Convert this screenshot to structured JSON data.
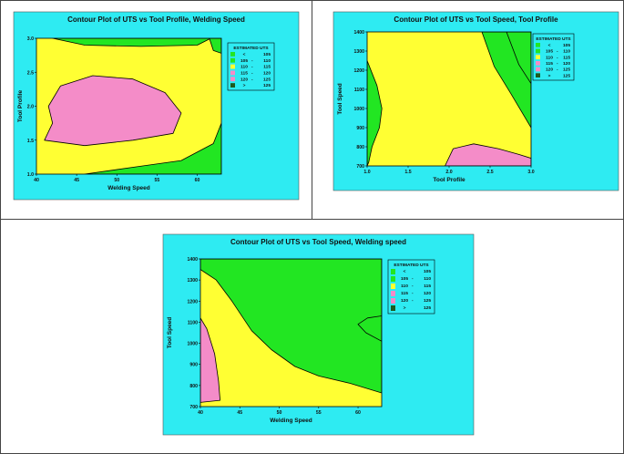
{
  "colors": {
    "cyan": "#2EEBF2",
    "plot_bg": "#FFFF33",
    "light_green": "#22E622",
    "pink": "#F48CC8",
    "dark_green": "#1E5A1E",
    "outline": "#000000"
  },
  "legend": {
    "title": "ESTIMATED UTS",
    "entries": [
      {
        "lo": "<",
        "hi": "105",
        "color": "#22E622"
      },
      {
        "lo": "105",
        "hi": "110",
        "color": "#22E622"
      },
      {
        "lo": "110",
        "hi": "115",
        "color": "#FFFF33"
      },
      {
        "lo": "115",
        "hi": "120",
        "color": "#F48CC8"
      },
      {
        "lo": "120",
        "hi": "125",
        "color": "#F48CC8"
      },
      {
        "lo": ">",
        "hi": "125",
        "color": "#1E5A1E"
      }
    ]
  },
  "chart_data": [
    {
      "type": "contour",
      "title": "Contour Plot of  UTS vs Tool Profile, Welding Speed",
      "xlabel": "Welding Speed",
      "ylabel": "Tool Profile",
      "xlim": [
        40,
        63
      ],
      "ylim": [
        1.0,
        3.0
      ],
      "xticks": [
        "40",
        "45",
        "50",
        "55",
        "60"
      ],
      "xtick_values": [
        40,
        45,
        50,
        55,
        60
      ],
      "yticks": [
        "1.0",
        "1.5",
        "2.0",
        "2.5",
        "3.0"
      ],
      "ytick_values": [
        1.0,
        1.5,
        2.0,
        2.5,
        3.0
      ],
      "regions": [
        {
          "band": "105-110",
          "color": "#22E622",
          "points": [
            [
              42,
              3.0
            ],
            [
              46,
              2.9
            ],
            [
              53,
              2.88
            ],
            [
              60,
              2.9
            ],
            [
              61.7,
              3.0
            ]
          ]
        },
        {
          "band": "105-110",
          "color": "#22E622",
          "points": [
            [
              61.5,
              3.0
            ],
            [
              62,
              2.82
            ],
            [
              63,
              2.78
            ],
            [
              63,
              3.0
            ]
          ]
        },
        {
          "band": "105-110",
          "color": "#22E622",
          "points": [
            [
              46,
              1.0
            ],
            [
              52,
              1.1
            ],
            [
              58,
              1.2
            ],
            [
              62,
              1.45
            ],
            [
              63,
              1.75
            ],
            [
              63,
              1.0
            ]
          ]
        },
        {
          "band": "115-120",
          "color": "#F48CC8",
          "points": [
            [
              41,
              1.5
            ],
            [
              42,
              1.75
            ],
            [
              41.5,
              2.0
            ],
            [
              43,
              2.3
            ],
            [
              47,
              2.45
            ],
            [
              52,
              2.4
            ],
            [
              56,
              2.2
            ],
            [
              58,
              1.9
            ],
            [
              57,
              1.6
            ],
            [
              52,
              1.5
            ],
            [
              46,
              1.42
            ]
          ]
        }
      ]
    },
    {
      "type": "contour",
      "title": "Contour Plot of  UTS vs Tool Speed, Tool Profile",
      "xlabel": "Tool Profile",
      "ylabel": "Tool Speed",
      "xlim": [
        1.0,
        3.0
      ],
      "ylim": [
        700,
        1400
      ],
      "xticks": [
        "1.0",
        "1.5",
        "2.0",
        "2.5",
        "3.0"
      ],
      "xtick_values": [
        1.0,
        1.5,
        2.0,
        2.5,
        3.0
      ],
      "yticks": [
        "700",
        "800",
        "900",
        "1000",
        "1100",
        "1200",
        "1300",
        "1400"
      ],
      "ytick_values": [
        700,
        800,
        900,
        1000,
        1100,
        1200,
        1300,
        1400
      ],
      "regions": [
        {
          "band": "105-110",
          "color": "#22E622",
          "points": [
            [
              1.0,
              1250
            ],
            [
              1.12,
              1120
            ],
            [
              1.18,
              1000
            ],
            [
              1.15,
              900
            ],
            [
              1.06,
              800
            ],
            [
              1.02,
              720
            ],
            [
              1.0,
              700
            ]
          ]
        },
        {
          "band": "105-110",
          "color": "#22E622",
          "points": [
            [
              2.4,
              1400
            ],
            [
              2.55,
              1220
            ],
            [
              2.75,
              1080
            ],
            [
              3.0,
              900
            ],
            [
              3.0,
              1400
            ]
          ]
        },
        {
          "band": "115-120",
          "color": "#F48CC8",
          "points": [
            [
              1.95,
              700
            ],
            [
              2.05,
              790
            ],
            [
              2.3,
              815
            ],
            [
              2.6,
              790
            ],
            [
              2.85,
              760
            ],
            [
              3.0,
              740
            ],
            [
              3.0,
              700
            ]
          ]
        }
      ],
      "lines": [
        {
          "points": [
            [
              2.7,
              1400
            ],
            [
              2.85,
              1230
            ],
            [
              3.0,
              1130
            ]
          ]
        }
      ]
    },
    {
      "type": "contour",
      "title": "Contour Plot of UTS vs Tool Speed, Welding speed",
      "xlabel": "Welding Speed",
      "ylabel": "Tool Speed",
      "xlim": [
        40,
        63
      ],
      "ylim": [
        700,
        1400
      ],
      "xticks": [
        "40",
        "45",
        "50",
        "55",
        "60"
      ],
      "xtick_values": [
        40,
        45,
        50,
        55,
        60
      ],
      "yticks": [
        "700",
        "800",
        "900",
        "1000",
        "1100",
        "1200",
        "1300",
        "1400"
      ],
      "ytick_values": [
        700,
        800,
        900,
        1000,
        1100,
        1200,
        1300,
        1400
      ],
      "regions": [
        {
          "band": "105-110",
          "color": "#22E622",
          "points": [
            [
              40,
              1350
            ],
            [
              42,
              1300
            ],
            [
              44,
              1200
            ],
            [
              46.5,
              1060
            ],
            [
              49,
              970
            ],
            [
              52,
              890
            ],
            [
              55,
              845
            ],
            [
              59,
              810
            ],
            [
              63,
              765
            ],
            [
              63,
              1400
            ],
            [
              40,
              1400
            ]
          ]
        },
        {
          "band": "115-120",
          "color": "#F48CC8",
          "points": [
            [
              40,
              720
            ],
            [
              42.5,
              730
            ],
            [
              42.3,
              820
            ],
            [
              41.8,
              950
            ],
            [
              40.8,
              1070
            ],
            [
              40,
              1120
            ]
          ]
        },
        {
          "band": ">125",
          "color": "#1E5A1E",
          "fill": false,
          "points": [
            [
              63,
              1130
            ],
            [
              61.2,
              1120
            ],
            [
              60,
              1090
            ],
            [
              61,
              1050
            ],
            [
              63,
              1010
            ]
          ]
        }
      ]
    }
  ]
}
